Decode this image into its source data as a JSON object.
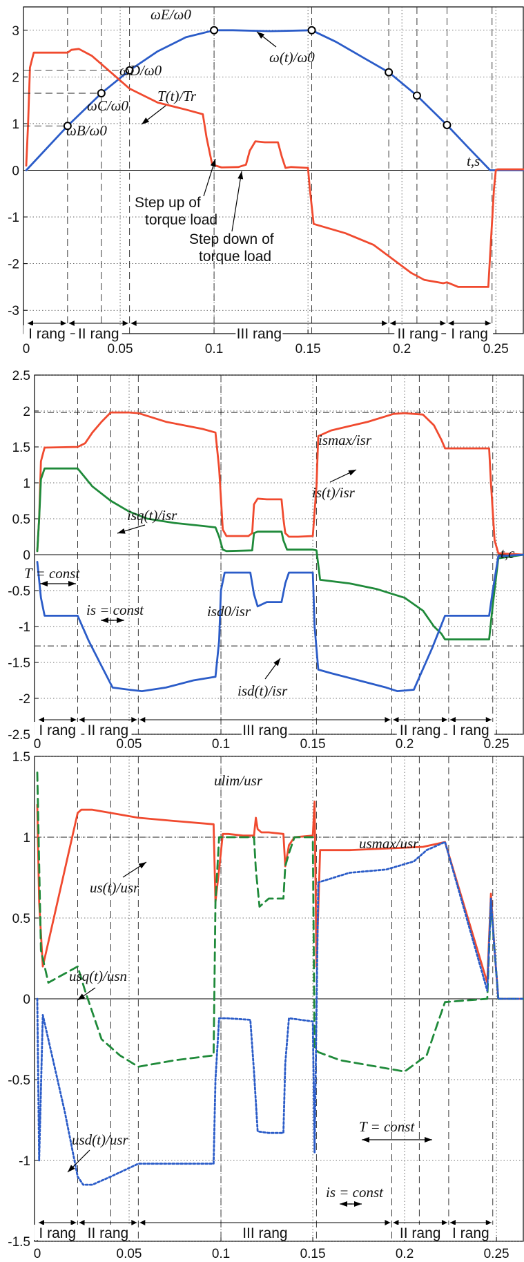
{
  "chart_data": [
    {
      "type": "line",
      "xlim": [
        0,
        0.265
      ],
      "ylim": [
        -3.5,
        3.5
      ],
      "xticks": [
        "0",
        "0.05",
        "0.1",
        "0.15",
        "0.2",
        "0.25"
      ],
      "yticks": [
        "3",
        "2",
        "1",
        "0",
        "-1",
        "-2",
        "-3"
      ],
      "grid": true,
      "series": [
        {
          "name": "ω(t)/ω0",
          "color": "#2b5cc8",
          "x": [
            0,
            0.022,
            0.04,
            0.055,
            0.07,
            0.085,
            0.1,
            0.11,
            0.13,
            0.152,
            0.165,
            0.18,
            0.193,
            0.208,
            0.224,
            0.235,
            0.247,
            0.265
          ],
          "y": [
            0,
            0.95,
            1.65,
            2.14,
            2.55,
            2.85,
            3.0,
            3.0,
            2.98,
            3.0,
            2.75,
            2.4,
            2.1,
            1.6,
            0.97,
            0.5,
            0.0,
            0.0
          ]
        },
        {
          "name": "T(t)/Tr",
          "color": "#f04a2f",
          "x": [
            0,
            0.001,
            0.002,
            0.004,
            0.022,
            0.024,
            0.028,
            0.035,
            0.045,
            0.055,
            0.07,
            0.085,
            0.094,
            0.096,
            0.099,
            0.104,
            0.113,
            0.117,
            0.119,
            0.122,
            0.127,
            0.134,
            0.136,
            0.138,
            0.141,
            0.145,
            0.15,
            0.151,
            0.153,
            0.17,
            0.185,
            0.195,
            0.205,
            0.212,
            0.222,
            0.224,
            0.23,
            0.236,
            0.246,
            0.247,
            0.249,
            0.25,
            0.251,
            0.265
          ],
          "y": [
            0.1,
            1.0,
            2.2,
            2.52,
            2.52,
            2.58,
            2.6,
            2.45,
            2.1,
            1.75,
            1.45,
            1.3,
            1.2,
            0.7,
            0.12,
            0.06,
            0.07,
            0.12,
            0.42,
            0.62,
            0.6,
            0.6,
            0.3,
            0.05,
            0.07,
            0.06,
            0.05,
            -0.4,
            -1.15,
            -1.35,
            -1.6,
            -1.9,
            -2.2,
            -2.35,
            -2.42,
            -2.4,
            -2.5,
            -2.5,
            -2.5,
            -1.8,
            -0.4,
            0.0,
            0.02,
            0.02
          ]
        }
      ],
      "annotations": {
        "omega": "ω(t)/ω0",
        "torque": "T(t)/Tr",
        "wB": "ωB/ω0",
        "wC": "ωC/ω0",
        "wD": "ωD/ω0",
        "wE": "ωE/ω0",
        "taxis": "t,s",
        "stepup1": "Step up of",
        "stepup2": "torque load",
        "stepdown1": "Step down of",
        "stepdown2": "torque load"
      },
      "ranges": [
        "I rang",
        "II rang",
        "III rang",
        "II rang",
        "I rang"
      ]
    },
    {
      "type": "line",
      "xlim": [
        0,
        0.265
      ],
      "ylim": [
        -2.5,
        2.5
      ],
      "xticks": [
        "0",
        "0.05",
        "0.1",
        "0.15",
        "0.2",
        "0.25"
      ],
      "yticks": [
        "2.5",
        "2",
        "1.5",
        "1",
        "0.5",
        "0",
        "-0.5",
        "-1",
        "-1.5",
        "-2",
        "-2.5"
      ],
      "grid": true,
      "series": [
        {
          "name": "is(t)/isr",
          "color": "#f04a2f",
          "x": [
            0,
            0.001,
            0.002,
            0.004,
            0.022,
            0.026,
            0.03,
            0.035,
            0.04,
            0.05,
            0.055,
            0.07,
            0.09,
            0.097,
            0.099,
            0.101,
            0.103,
            0.115,
            0.117,
            0.118,
            0.12,
            0.125,
            0.133,
            0.134,
            0.135,
            0.137,
            0.142,
            0.15,
            0.152,
            0.153,
            0.16,
            0.18,
            0.194,
            0.2,
            0.205,
            0.21,
            0.216,
            0.22,
            0.222,
            0.24,
            0.246,
            0.247,
            0.249,
            0.251,
            0.265
          ],
          "y": [
            0.05,
            0.5,
            1.3,
            1.49,
            1.5,
            1.55,
            1.7,
            1.85,
            1.98,
            1.98,
            1.97,
            1.85,
            1.75,
            1.7,
            1.2,
            0.35,
            0.26,
            0.26,
            0.3,
            0.7,
            0.78,
            0.77,
            0.77,
            0.5,
            0.3,
            0.25,
            0.25,
            0.26,
            0.95,
            1.65,
            1.73,
            1.85,
            1.96,
            1.97,
            1.96,
            1.95,
            1.8,
            1.6,
            1.48,
            1.48,
            1.48,
            1.0,
            0.2,
            0.02,
            0.0
          ],
          "_": null
        },
        {
          "name": "isq(t)/isr",
          "color": "#1f8a3a",
          "x": [
            0,
            0.001,
            0.002,
            0.004,
            0.022,
            0.03,
            0.04,
            0.05,
            0.06,
            0.075,
            0.09,
            0.097,
            0.099,
            0.101,
            0.103,
            0.117,
            0.118,
            0.12,
            0.133,
            0.134,
            0.136,
            0.15,
            0.152,
            0.154,
            0.17,
            0.185,
            0.2,
            0.21,
            0.216,
            0.22,
            0.222,
            0.24,
            0.246,
            0.248,
            0.251,
            0.265
          ],
          "y": [
            0.05,
            0.5,
            1.05,
            1.2,
            1.2,
            0.95,
            0.75,
            0.6,
            0.5,
            0.44,
            0.4,
            0.38,
            0.25,
            0.07,
            0.05,
            0.06,
            0.3,
            0.32,
            0.32,
            0.2,
            0.07,
            0.07,
            0.06,
            -0.35,
            -0.4,
            -0.48,
            -0.6,
            -0.78,
            -1.0,
            -1.1,
            -1.18,
            -1.18,
            -1.18,
            -0.7,
            -0.05,
            0.0
          ]
        },
        {
          "name": "isd(t)/isr",
          "color": "#2b5cc8",
          "x": [
            0,
            0.002,
            0.004,
            0.022,
            0.028,
            0.035,
            0.041,
            0.05,
            0.057,
            0.07,
            0.085,
            0.097,
            0.099,
            0.1,
            0.102,
            0.116,
            0.118,
            0.12,
            0.125,
            0.133,
            0.135,
            0.137,
            0.15,
            0.151,
            0.153,
            0.16,
            0.175,
            0.19,
            0.196,
            0.205,
            0.215,
            0.222,
            0.24,
            0.246,
            0.248,
            0.251,
            0.265
          ],
          "y": [
            -0.1,
            -0.6,
            -0.85,
            -0.85,
            -1.2,
            -1.55,
            -1.85,
            -1.88,
            -1.9,
            -1.85,
            -1.75,
            -1.7,
            -1.2,
            -0.5,
            -0.25,
            -0.25,
            -0.55,
            -0.72,
            -0.66,
            -0.66,
            -0.4,
            -0.25,
            -0.25,
            -1.0,
            -1.6,
            -1.65,
            -1.75,
            -1.85,
            -1.9,
            -1.88,
            -1.3,
            -0.85,
            -0.85,
            -0.85,
            -0.5,
            -0.02,
            0.0
          ]
        }
      ],
      "hlines": [
        1.98,
        -1.27
      ],
      "annotations": {
        "ismax": "ismax/isr",
        "is": "is(t)/isr",
        "isq": "isq(t)/isr",
        "isd0": "isd0/isr",
        "isd": "isd(t)/isr",
        "tconst": "T = const",
        "isconst": "is = const",
        "taxis": "t,c"
      },
      "ranges": [
        "I rang",
        "II rang",
        "III rang",
        "II rang",
        "I rang"
      ]
    },
    {
      "type": "line",
      "xlim": [
        0,
        0.265
      ],
      "ylim": [
        -1.5,
        1.5
      ],
      "xticks": [
        "0",
        "0.05",
        "0.1",
        "0.15",
        "0.2",
        "0.25"
      ],
      "yticks": [
        "1.5",
        "1",
        "0.5",
        "0",
        "-0.5",
        "-1",
        "-1.5"
      ],
      "grid": true,
      "series": [
        {
          "name": "us(t)/usr",
          "color": "#f04a2f",
          "x": [
            0,
            0.001,
            0.003,
            0.006,
            0.022,
            0.024,
            0.03,
            0.04,
            0.055,
            0.075,
            0.096,
            0.097,
            0.099,
            0.101,
            0.104,
            0.112,
            0.118,
            0.119,
            0.12,
            0.122,
            0.126,
            0.134,
            0.135,
            0.137,
            0.14,
            0.15,
            0.151,
            0.152,
            0.154,
            0.17,
            0.19,
            0.21,
            0.218,
            0.222,
            0.245,
            0.247,
            0.249,
            0.251,
            0.265
          ],
          "y": [
            1.2,
            0.6,
            0.2,
            0.35,
            1.15,
            1.17,
            1.17,
            1.15,
            1.12,
            1.1,
            1.08,
            0.6,
            0.8,
            1.02,
            1.02,
            1.01,
            1.01,
            1.12,
            1.05,
            1.03,
            1.03,
            1.02,
            0.82,
            0.95,
            1.0,
            1.01,
            1.22,
            0.2,
            0.92,
            0.92,
            0.93,
            0.94,
            0.96,
            0.97,
            0.1,
            0.65,
            0.3,
            0.0,
            0.0
          ]
        },
        {
          "name": "usq(t)/usn",
          "color": "#1f8a3a",
          "dash": "12,7",
          "x": [
            0,
            0.002,
            0.006,
            0.022,
            0.026,
            0.035,
            0.045,
            0.055,
            0.075,
            0.096,
            0.097,
            0.099,
            0.103,
            0.112,
            0.118,
            0.119,
            0.121,
            0.126,
            0.134,
            0.135,
            0.137,
            0.14,
            0.15,
            0.151,
            0.153,
            0.165,
            0.185,
            0.2,
            0.212,
            0.218,
            0.222,
            0.245,
            0.247,
            0.249,
            0.251,
            0.265
          ],
          "y": [
            1.4,
            0.3,
            0.1,
            0.2,
            0.05,
            -0.25,
            -0.35,
            -0.42,
            -0.38,
            -0.35,
            0.6,
            1.0,
            1.0,
            1.0,
            1.0,
            0.8,
            0.57,
            0.62,
            0.62,
            0.82,
            0.9,
            1.0,
            1.0,
            -0.3,
            -0.33,
            -0.38,
            -0.42,
            -0.45,
            -0.35,
            -0.15,
            -0.02,
            0.0,
            0.6,
            0.3,
            0.0,
            0.0
          ]
        },
        {
          "name": "usd(t)/usr",
          "color": "#2b5cc8",
          "dash": "3,3",
          "x": [
            0,
            0.001,
            0.003,
            0.008,
            0.015,
            0.022,
            0.025,
            0.03,
            0.04,
            0.055,
            0.075,
            0.096,
            0.097,
            0.099,
            0.103,
            0.116,
            0.118,
            0.12,
            0.126,
            0.134,
            0.135,
            0.137,
            0.15,
            0.151,
            0.153,
            0.17,
            0.19,
            0.205,
            0.212,
            0.218,
            0.222,
            0.245,
            0.247,
            0.249,
            0.251,
            0.265
          ],
          "y": [
            0.0,
            -1.0,
            -0.1,
            -0.35,
            -0.7,
            -1.1,
            -1.15,
            -1.15,
            -1.1,
            -1.02,
            -1.02,
            -1.02,
            -0.5,
            -0.12,
            -0.12,
            -0.13,
            -0.45,
            -0.82,
            -0.83,
            -0.83,
            -0.4,
            -0.12,
            -0.14,
            -0.95,
            0.72,
            0.78,
            0.8,
            0.85,
            0.92,
            0.95,
            0.97,
            0.05,
            0.62,
            0.3,
            0.0,
            0.0
          ]
        }
      ],
      "hlines": [
        1.0
      ],
      "annotations": {
        "ulim": "ulim/usr",
        "usmax": "usmax/usr",
        "us": "us(t)/usr",
        "usq": "usq(t)/usn",
        "usd": "usd(t)/usr",
        "tconst": "T = const",
        "isconst": "is = const"
      },
      "ranges": [
        "I rang",
        "II rang",
        "III rang",
        "II rang",
        "I rang"
      ]
    }
  ]
}
